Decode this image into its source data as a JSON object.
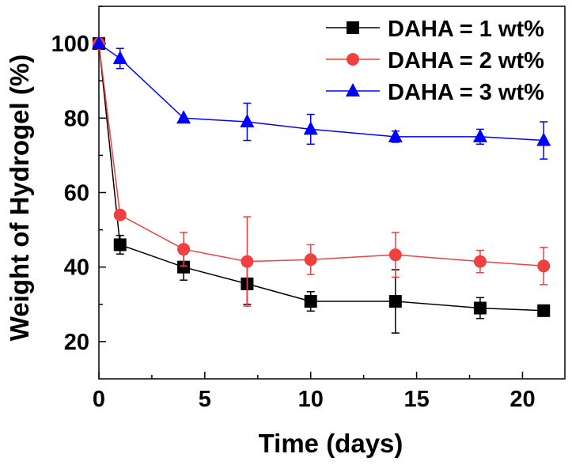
{
  "chart_data": {
    "type": "line",
    "title": "",
    "xlabel": "Time (days)",
    "ylabel": "Weight of Hydrogel (%)",
    "xlim": [
      0,
      22
    ],
    "ylim": [
      10,
      110
    ],
    "xticks": [
      0,
      5,
      10,
      15,
      20
    ],
    "yticks": [
      20,
      40,
      60,
      80,
      100
    ],
    "grid": false,
    "legend_position": "top-right",
    "series": [
      {
        "name": "DAHA = 1 wt%",
        "color": "#000000",
        "marker": "square",
        "x": [
          0,
          1,
          4,
          7,
          10,
          14,
          18,
          21
        ],
        "y": [
          100,
          46,
          40,
          35.5,
          30.8,
          30.8,
          29,
          28.3
        ],
        "err": [
          0,
          2.5,
          3.5,
          5.5,
          2.6,
          8.5,
          2.8,
          0.8
        ]
      },
      {
        "name": "DAHA = 2 wt%",
        "color": "#f04040",
        "marker": "circle",
        "x": [
          0,
          1,
          4,
          7,
          10,
          14,
          18,
          21
        ],
        "y": [
          100,
          54,
          44.8,
          41.5,
          42,
          43.3,
          41.5,
          40.3
        ],
        "err": [
          0,
          0,
          4.5,
          12,
          4,
          6,
          3,
          5
        ]
      },
      {
        "name": "DAHA = 3 wt%",
        "color": "#0000ff",
        "marker": "triangle",
        "x": [
          0,
          1,
          4,
          7,
          10,
          14,
          18,
          21
        ],
        "y": [
          100,
          96,
          80,
          79,
          77,
          75,
          75,
          74
        ],
        "err": [
          0,
          2.7,
          0,
          5,
          4,
          1.5,
          2,
          5
        ]
      }
    ]
  }
}
